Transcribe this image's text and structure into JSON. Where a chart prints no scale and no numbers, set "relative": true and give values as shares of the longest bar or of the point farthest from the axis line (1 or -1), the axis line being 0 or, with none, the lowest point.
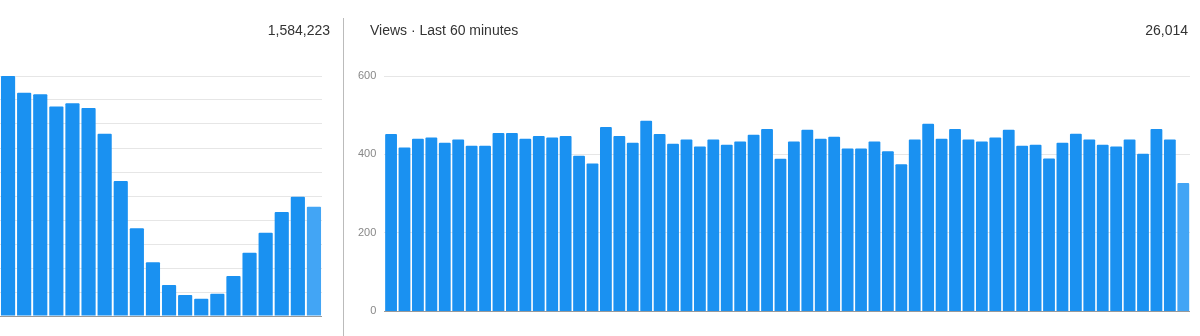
{
  "chart_data": [
    {
      "type": "bar",
      "relative": true,
      "annotations": [
        "1,584,223"
      ],
      "grid": "y",
      "tick_labels": false,
      "categories": [
        null,
        null,
        null,
        null,
        null,
        null,
        null,
        null,
        null,
        null,
        null,
        null,
        null,
        null,
        null,
        null,
        null,
        null,
        null,
        null
      ],
      "values": [
        1,
        0.93,
        0.924,
        0.873,
        0.886,
        0.867,
        0.759,
        0.562,
        0.366,
        0.224,
        0.129,
        0.087,
        0.072,
        0.093,
        0.167,
        0.264,
        0.347,
        0.433,
        0.497,
        0.455
      ],
      "colors": [
        "#1a91f1",
        "#1a91f1",
        "#1a91f1",
        "#1a91f1",
        "#1a91f1",
        "#1a91f1",
        "#1a91f1",
        "#1a91f1",
        "#1a91f1",
        "#1a91f1",
        "#1a91f1",
        "#1a91f1",
        "#1a91f1",
        "#1a91f1",
        "#1a91f1",
        "#1a91f1",
        "#1a91f1",
        "#1a91f1",
        "#1a91f1",
        "#42a5f5"
      ]
    },
    {
      "type": "bar",
      "title": "Views · Last 60 minutes",
      "annotations": [
        "26,014"
      ],
      "grid": "y",
      "tick_labels": "y",
      "ylim": [
        0,
        600
      ],
      "yticks": [
        0,
        200,
        400,
        600
      ],
      "categories": [
        null,
        null,
        null,
        null,
        null,
        null,
        null,
        null,
        null,
        null,
        null,
        null,
        null,
        null,
        null,
        null,
        null,
        null,
        null,
        null,
        null,
        null,
        null,
        null,
        null,
        null,
        null,
        null,
        null,
        null,
        null,
        null,
        null,
        null,
        null,
        null,
        null,
        null,
        null,
        null,
        null,
        null,
        null,
        null,
        null,
        null,
        null,
        null,
        null,
        null,
        null,
        null,
        null,
        null,
        null,
        null,
        null,
        null,
        null,
        null
      ],
      "values": [
        452,
        418,
        440,
        443,
        430,
        438,
        422,
        422,
        455,
        455,
        440,
        447,
        443,
        447,
        397,
        377,
        470,
        447,
        430,
        486,
        452,
        427,
        438,
        420,
        438,
        425,
        433,
        450,
        465,
        389,
        433,
        463,
        440,
        445,
        415,
        415,
        433,
        408,
        375,
        438,
        478,
        440,
        465,
        438,
        433,
        443,
        463,
        422,
        425,
        390,
        430,
        453,
        438,
        425,
        420,
        438,
        402,
        465,
        438,
        327
      ],
      "colors": [
        "#1a91f1",
        "#1a91f1",
        "#1a91f1",
        "#1a91f1",
        "#1a91f1",
        "#1a91f1",
        "#1a91f1",
        "#1a91f1",
        "#1a91f1",
        "#1a91f1",
        "#1a91f1",
        "#1a91f1",
        "#1a91f1",
        "#1a91f1",
        "#1a91f1",
        "#1a91f1",
        "#1a91f1",
        "#1a91f1",
        "#1a91f1",
        "#1a91f1",
        "#1a91f1",
        "#1a91f1",
        "#1a91f1",
        "#1a91f1",
        "#1a91f1",
        "#1a91f1",
        "#1a91f1",
        "#1a91f1",
        "#1a91f1",
        "#1a91f1",
        "#1a91f1",
        "#1a91f1",
        "#1a91f1",
        "#1a91f1",
        "#1a91f1",
        "#1a91f1",
        "#1a91f1",
        "#1a91f1",
        "#1a91f1",
        "#1a91f1",
        "#1a91f1",
        "#1a91f1",
        "#1a91f1",
        "#1a91f1",
        "#1a91f1",
        "#1a91f1",
        "#1a91f1",
        "#1a91f1",
        "#1a91f1",
        "#1a91f1",
        "#1a91f1",
        "#1a91f1",
        "#1a91f1",
        "#1a91f1",
        "#1a91f1",
        "#1a91f1",
        "#1a91f1",
        "#1a91f1",
        "#1a91f1",
        "#42a5f5"
      ]
    }
  ]
}
